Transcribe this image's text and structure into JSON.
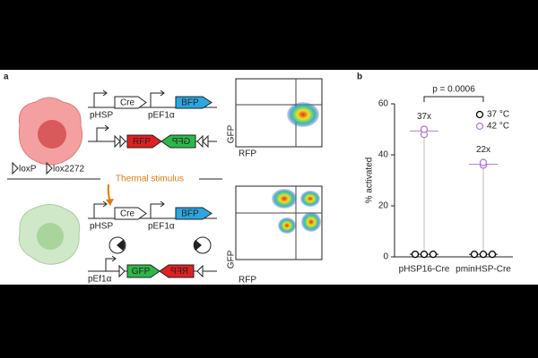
{
  "panel_a": {
    "label": "a",
    "top": {
      "promoter": "pHSP",
      "gene": "Cre",
      "promoter2": "pEF1α",
      "reporter": "BFP",
      "rfp": "RFP",
      "gfp": "GFP",
      "flow_y": "GFP",
      "flow_x": "RFP"
    },
    "legend": {
      "loxp": "loxP",
      "lox2272": "lox2272"
    },
    "stimulus": "Thermal stimulus",
    "bottom": {
      "promoter": "pHSP",
      "gene": "Cre",
      "promoter2": "pEF1α",
      "reporter": "BFP",
      "promoter3": "pEf1α",
      "gfp": "GFP",
      "rfp": "RFP",
      "flow_y": "GFP",
      "flow_x": "RFP"
    }
  },
  "chart_data": {
    "type": "dot",
    "panel_label": "b",
    "ylabel": "% activated",
    "categories": [
      "pHSP16-Cre",
      "pminHSP-Cre"
    ],
    "series": [
      {
        "name": "37 °C",
        "color": "#000000",
        "values": [
          [
            1,
            1,
            1
          ],
          [
            1,
            1,
            1
          ]
        ]
      },
      {
        "name": "42 °C",
        "color": "#b07fd8",
        "values": [
          [
            50,
            48,
            50
          ],
          [
            36,
            36,
            37
          ]
        ]
      }
    ],
    "annotations": [
      "37x",
      "22x"
    ],
    "pvalue": "p = 0.0006",
    "ylim": [
      0,
      60
    ],
    "yticks": [
      0,
      20,
      40,
      60
    ]
  }
}
